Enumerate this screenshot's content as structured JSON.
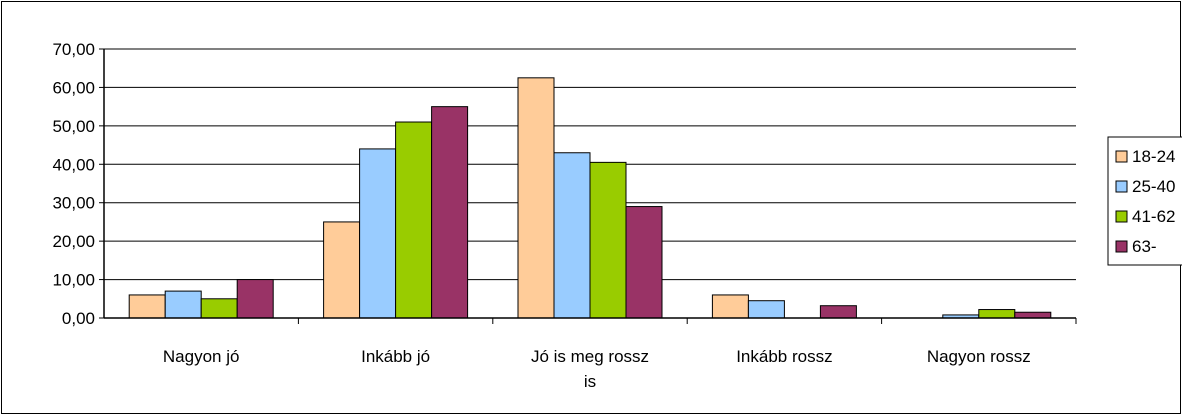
{
  "chart_data": {
    "type": "bar",
    "categories": [
      "Nagyon jó",
      "Inkább jó",
      "Jó is meg rossz is",
      "Inkább rossz",
      "Nagyon rossz"
    ],
    "series": [
      {
        "name": "18-24",
        "color": "#FFCC99",
        "values": [
          6.0,
          25.0,
          62.5,
          6.0,
          0.0
        ]
      },
      {
        "name": "25-40",
        "color": "#99CCFF",
        "values": [
          7.0,
          44.0,
          43.0,
          4.5,
          0.8
        ]
      },
      {
        "name": "41-62",
        "color": "#99CC00",
        "values": [
          5.0,
          51.0,
          40.5,
          0.0,
          2.2
        ]
      },
      {
        "name": "63-",
        "color": "#993366",
        "values": [
          10.0,
          55.0,
          29.0,
          3.2,
          1.5
        ]
      }
    ],
    "y_ticks": [
      "0,00",
      "10,00",
      "20,00",
      "30,00",
      "40,00",
      "50,00",
      "60,00",
      "70,00"
    ],
    "ylim": [
      0,
      70
    ],
    "grid": true,
    "legend_position": "right"
  }
}
